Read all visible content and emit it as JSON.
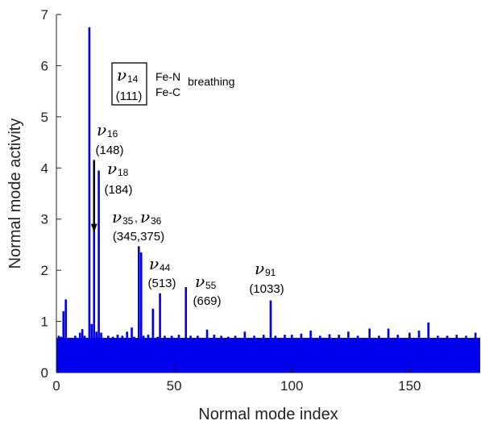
{
  "chart_data": {
    "type": "bar",
    "xlabel": "Normal mode index",
    "ylabel": "Normal mode activity",
    "xlim": [
      0,
      180
    ],
    "ylim": [
      0,
      7
    ],
    "xticks": [
      0,
      50,
      100,
      150
    ],
    "yticks": [
      0,
      1,
      2,
      3,
      4,
      5,
      6,
      7
    ],
    "bar_color": "#0000ee",
    "grid": false,
    "baseline_level": 0.68,
    "peaks": [
      {
        "x": 1,
        "y": 0.72
      },
      {
        "x": 2,
        "y": 0.7
      },
      {
        "x": 3,
        "y": 1.2
      },
      {
        "x": 4,
        "y": 1.43
      },
      {
        "x": 6,
        "y": 0.68
      },
      {
        "x": 8,
        "y": 0.72
      },
      {
        "x": 10,
        "y": 0.78
      },
      {
        "x": 11,
        "y": 0.85
      },
      {
        "x": 12,
        "y": 0.72
      },
      {
        "x": 14,
        "y": 6.75
      },
      {
        "x": 15,
        "y": 0.95
      },
      {
        "x": 16,
        "y": 4.15
      },
      {
        "x": 17,
        "y": 0.8
      },
      {
        "x": 18,
        "y": 3.95
      },
      {
        "x": 19,
        "y": 0.78
      },
      {
        "x": 22,
        "y": 0.72
      },
      {
        "x": 24,
        "y": 0.7
      },
      {
        "x": 26,
        "y": 0.74
      },
      {
        "x": 28,
        "y": 0.72
      },
      {
        "x": 30,
        "y": 0.8
      },
      {
        "x": 32,
        "y": 0.88
      },
      {
        "x": 33,
        "y": 0.7
      },
      {
        "x": 35,
        "y": 2.47
      },
      {
        "x": 36,
        "y": 2.35
      },
      {
        "x": 37,
        "y": 0.72
      },
      {
        "x": 39,
        "y": 0.74
      },
      {
        "x": 41,
        "y": 1.25
      },
      {
        "x": 43,
        "y": 0.7
      },
      {
        "x": 44,
        "y": 1.55
      },
      {
        "x": 46,
        "y": 0.72
      },
      {
        "x": 49,
        "y": 0.72
      },
      {
        "x": 52,
        "y": 0.74
      },
      {
        "x": 55,
        "y": 1.67
      },
      {
        "x": 57,
        "y": 0.72
      },
      {
        "x": 60,
        "y": 0.72
      },
      {
        "x": 64,
        "y": 0.84
      },
      {
        "x": 67,
        "y": 0.74
      },
      {
        "x": 70,
        "y": 0.72
      },
      {
        "x": 73,
        "y": 0.7
      },
      {
        "x": 76,
        "y": 0.72
      },
      {
        "x": 80,
        "y": 0.8
      },
      {
        "x": 84,
        "y": 0.72
      },
      {
        "x": 88,
        "y": 0.74
      },
      {
        "x": 91,
        "y": 1.41
      },
      {
        "x": 93,
        "y": 0.72
      },
      {
        "x": 97,
        "y": 0.74
      },
      {
        "x": 100,
        "y": 0.74
      },
      {
        "x": 104,
        "y": 0.76
      },
      {
        "x": 108,
        "y": 0.82
      },
      {
        "x": 112,
        "y": 0.72
      },
      {
        "x": 116,
        "y": 0.75
      },
      {
        "x": 120,
        "y": 0.74
      },
      {
        "x": 124,
        "y": 0.8
      },
      {
        "x": 128,
        "y": 0.72
      },
      {
        "x": 133,
        "y": 0.86
      },
      {
        "x": 137,
        "y": 0.72
      },
      {
        "x": 141,
        "y": 0.86
      },
      {
        "x": 145,
        "y": 0.74
      },
      {
        "x": 150,
        "y": 0.78
      },
      {
        "x": 154,
        "y": 0.82
      },
      {
        "x": 158,
        "y": 0.98
      },
      {
        "x": 162,
        "y": 0.72
      },
      {
        "x": 166,
        "y": 0.72
      },
      {
        "x": 170,
        "y": 0.74
      },
      {
        "x": 174,
        "y": 0.72
      },
      {
        "x": 178,
        "y": 0.78
      }
    ],
    "annotations": [
      {
        "nu": "ν",
        "sub": "14",
        "value": "(111)",
        "extra_top": "Fe-N",
        "extra_bottom": "Fe-C",
        "extra_right": "breathing",
        "boxed": true
      },
      {
        "nu": "ν",
        "sub": "16",
        "value": "(148)",
        "arrow_to": {
          "x": 16,
          "y": 2.75
        }
      },
      {
        "nu": "ν",
        "sub": "18",
        "value": "(184)"
      },
      {
        "nu": "ν",
        "sub": "35",
        "nu2": "ν",
        "sub2": "36",
        "value": "(345,375)"
      },
      {
        "nu": "ν",
        "sub": "44",
        "value": "(513)"
      },
      {
        "nu": "ν",
        "sub": "55",
        "value": "(669)"
      },
      {
        "nu": "ν",
        "sub": "91",
        "value": "(1033)"
      }
    ]
  }
}
